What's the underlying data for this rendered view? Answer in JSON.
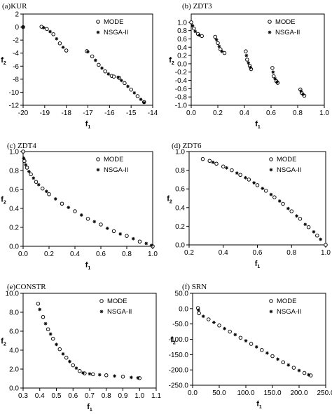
{
  "chart_data": [
    {
      "type": "scatter",
      "panel_label": "(a)KUR",
      "xlabel": "f1",
      "ylabel": "f2",
      "xlim": [
        -20,
        -14
      ],
      "ylim": [
        -12,
        2
      ],
      "xticks": [
        "-20",
        "-19",
        "-18",
        "-17",
        "-16",
        "-15",
        "-14"
      ],
      "xtick_values": [
        -20,
        -19,
        -18,
        -17,
        -16,
        -15,
        -14
      ],
      "yticks": [
        "2",
        "0",
        "-2",
        "-4",
        "-6",
        "-8",
        "-10",
        "-12"
      ],
      "ytick_values": [
        2,
        0,
        -2,
        -4,
        -6,
        -8,
        -10,
        -12
      ],
      "legend": [
        "MODE",
        "NSGA-II"
      ],
      "legend_position": "top-right",
      "series": [
        {
          "name": "MODE",
          "marker": "circle",
          "points": [
            [
              -20,
              0
            ],
            [
              -19.15,
              0.05
            ],
            [
              -18.9,
              -0.3
            ],
            [
              -18.6,
              -1.1
            ],
            [
              -18.3,
              -2.5
            ],
            [
              -18.0,
              -3.6
            ],
            [
              -17.05,
              -3.7
            ],
            [
              -16.8,
              -4.5
            ],
            [
              -16.5,
              -5.8
            ],
            [
              -16.2,
              -6.8
            ],
            [
              -15.9,
              -7.5
            ],
            [
              -15.8,
              -7.6
            ],
            [
              -15.55,
              -7.8
            ],
            [
              -15.3,
              -8.6
            ],
            [
              -15.0,
              -9.6
            ],
            [
              -14.7,
              -10.6
            ],
            [
              -14.4,
              -11.5
            ]
          ]
        },
        {
          "name": "NSGA-II",
          "marker": "asterisk",
          "points": [
            [
              -20,
              0
            ],
            [
              -19.05,
              -0.1
            ],
            [
              -18.75,
              -0.7
            ],
            [
              -18.45,
              -1.8
            ],
            [
              -18.15,
              -3.1
            ],
            [
              -17.0,
              -3.8
            ],
            [
              -16.65,
              -5.1
            ],
            [
              -16.35,
              -6.3
            ],
            [
              -16.05,
              -7.2
            ],
            [
              -15.6,
              -7.7
            ],
            [
              -15.45,
              -8.2
            ],
            [
              -15.15,
              -9.1
            ],
            [
              -14.85,
              -10.1
            ],
            [
              -14.55,
              -11.1
            ],
            [
              -14.4,
              -11.6
            ]
          ]
        }
      ]
    },
    {
      "type": "scatter",
      "panel_label": "(b) ZDT3",
      "xlabel": "f1",
      "ylabel": "f2",
      "xlim": [
        0,
        1
      ],
      "ylim": [
        -1,
        1.2
      ],
      "xticks": [
        "0.0",
        "0.2",
        "0.4",
        "0.6",
        "0.8",
        "1.0"
      ],
      "xtick_values": [
        0,
        0.2,
        0.4,
        0.6,
        0.8,
        1.0
      ],
      "yticks": [
        "1.0",
        "0.8",
        "0.6",
        "0.4",
        "0.2",
        "0.0",
        "-0.2",
        "-0.4",
        "-0.6",
        "-0.8",
        "-1.0"
      ],
      "ytick_values": [
        1.0,
        0.8,
        0.6,
        0.4,
        0.2,
        0.0,
        -0.2,
        -0.4,
        -0.6,
        -0.8,
        -1.0
      ],
      "legend": [
        "MODE",
        "NSGA-II"
      ],
      "legend_position": "top-right",
      "series": [
        {
          "name": "MODE",
          "marker": "circle",
          "points": [
            [
              0.0,
              1.0
            ],
            [
              0.02,
              0.85
            ],
            [
              0.05,
              0.72
            ],
            [
              0.08,
              0.67
            ],
            [
              0.18,
              0.65
            ],
            [
              0.2,
              0.5
            ],
            [
              0.22,
              0.35
            ],
            [
              0.25,
              0.26
            ],
            [
              0.41,
              0.3
            ],
            [
              0.42,
              0.1
            ],
            [
              0.44,
              -0.05
            ],
            [
              0.45,
              -0.13
            ],
            [
              0.61,
              -0.1
            ],
            [
              0.62,
              -0.3
            ],
            [
              0.64,
              -0.42
            ],
            [
              0.65,
              -0.46
            ],
            [
              0.82,
              -0.62
            ],
            [
              0.83,
              -0.7
            ],
            [
              0.85,
              -0.77
            ]
          ]
        },
        {
          "name": "NSGA-II",
          "marker": "asterisk",
          "points": [
            [
              0.01,
              0.92
            ],
            [
              0.03,
              0.78
            ],
            [
              0.06,
              0.69
            ],
            [
              0.19,
              0.58
            ],
            [
              0.21,
              0.42
            ],
            [
              0.23,
              0.3
            ],
            [
              0.415,
              0.2
            ],
            [
              0.43,
              0.02
            ],
            [
              0.445,
              -0.09
            ],
            [
              0.615,
              -0.2
            ],
            [
              0.63,
              -0.36
            ],
            [
              0.645,
              -0.44
            ],
            [
              0.825,
              -0.66
            ],
            [
              0.84,
              -0.74
            ]
          ]
        }
      ]
    },
    {
      "type": "scatter",
      "panel_label": "(c) ZDT4",
      "xlabel": "f1",
      "ylabel": "f2",
      "xlim": [
        0,
        1
      ],
      "ylim": [
        0,
        1
      ],
      "xticks": [
        "0.0",
        "0.2",
        "0.4",
        "0.6",
        "0.8",
        "1.0"
      ],
      "xtick_values": [
        0,
        0.2,
        0.4,
        0.6,
        0.8,
        1.0
      ],
      "yticks": [
        "1.0",
        "0.8",
        "0.6",
        "0.4",
        "0.2",
        "0.0"
      ],
      "ytick_values": [
        1.0,
        0.8,
        0.6,
        0.4,
        0.2,
        0.0
      ],
      "legend": [
        "MODE",
        "NSGA-II"
      ],
      "legend_position": "top-right",
      "series": [
        {
          "name": "MODE",
          "marker": "circle",
          "points": [
            [
              0.0,
              1.0
            ],
            [
              0.01,
              0.9
            ],
            [
              0.03,
              0.83
            ],
            [
              0.06,
              0.76
            ],
            [
              0.1,
              0.68
            ],
            [
              0.15,
              0.61
            ],
            [
              0.2,
              0.55
            ],
            [
              0.3,
              0.45
            ],
            [
              0.4,
              0.37
            ],
            [
              0.5,
              0.29
            ],
            [
              0.6,
              0.23
            ],
            [
              0.7,
              0.16
            ],
            [
              0.8,
              0.11
            ],
            [
              0.9,
              0.05
            ],
            [
              1.0,
              0.0
            ]
          ]
        },
        {
          "name": "NSGA-II",
          "marker": "asterisk",
          "points": [
            [
              0.005,
              0.93
            ],
            [
              0.02,
              0.86
            ],
            [
              0.045,
              0.79
            ],
            [
              0.08,
              0.72
            ],
            [
              0.12,
              0.65
            ],
            [
              0.18,
              0.58
            ],
            [
              0.25,
              0.5
            ],
            [
              0.35,
              0.41
            ],
            [
              0.45,
              0.33
            ],
            [
              0.55,
              0.26
            ],
            [
              0.65,
              0.19
            ],
            [
              0.75,
              0.13
            ],
            [
              0.85,
              0.08
            ],
            [
              0.95,
              0.03
            ],
            [
              0.99,
              0.01
            ]
          ]
        }
      ]
    },
    {
      "type": "scatter",
      "panel_label": "(d) ZDT6",
      "xlabel": "f1",
      "ylabel": "f2",
      "xlim": [
        0.2,
        1.0
      ],
      "ylim": [
        0,
        1
      ],
      "xticks": [
        "0.2",
        "0.4",
        "0.6",
        "0.8",
        "1.0"
      ],
      "xtick_values": [
        0.2,
        0.4,
        0.6,
        0.8,
        1.0
      ],
      "yticks": [
        "1.0",
        "0.8",
        "0.6",
        "0.4",
        "0.2",
        "0.0"
      ],
      "ytick_values": [
        1.0,
        0.8,
        0.6,
        0.4,
        0.2,
        0.0
      ],
      "legend": [
        "MODE",
        "NSGA-II"
      ],
      "legend_position": "top-right",
      "series": [
        {
          "name": "MODE",
          "marker": "circle",
          "points": [
            [
              0.28,
              0.92
            ],
            [
              0.32,
              0.9
            ],
            [
              0.36,
              0.87
            ],
            [
              0.4,
              0.84
            ],
            [
              0.45,
              0.8
            ],
            [
              0.5,
              0.75
            ],
            [
              0.55,
              0.7
            ],
            [
              0.6,
              0.64
            ],
            [
              0.65,
              0.58
            ],
            [
              0.7,
              0.51
            ],
            [
              0.75,
              0.44
            ],
            [
              0.8,
              0.36
            ],
            [
              0.85,
              0.28
            ],
            [
              0.9,
              0.19
            ],
            [
              0.95,
              0.1
            ],
            [
              1.0,
              0.0
            ]
          ]
        },
        {
          "name": "NSGA-II",
          "marker": "asterisk",
          "points": [
            [
              0.34,
              0.885
            ],
            [
              0.42,
              0.825
            ],
            [
              0.48,
              0.77
            ],
            [
              0.53,
              0.72
            ],
            [
              0.58,
              0.665
            ],
            [
              0.63,
              0.605
            ],
            [
              0.68,
              0.54
            ],
            [
              0.73,
              0.47
            ],
            [
              0.78,
              0.39
            ],
            [
              0.83,
              0.31
            ],
            [
              0.88,
              0.22
            ],
            [
              0.93,
              0.14
            ],
            [
              0.97,
              0.06
            ]
          ]
        }
      ]
    },
    {
      "type": "scatter",
      "panel_label": "(e)CONSTR",
      "xlabel": "f1",
      "ylabel": "f2",
      "xlim": [
        0.3,
        1.1
      ],
      "ylim": [
        0,
        10
      ],
      "xticks": [
        "0.3",
        "0.4",
        "0.5",
        "0.6",
        "0.7",
        "0.8",
        "0.9",
        "1.0",
        "1.1"
      ],
      "xtick_values": [
        0.3,
        0.4,
        0.5,
        0.6,
        0.7,
        0.8,
        0.9,
        1.0,
        1.1
      ],
      "yticks": [
        "10.0",
        "8.0",
        "6.0",
        "4.0",
        "2.0",
        "0.0"
      ],
      "ytick_values": [
        10,
        8,
        6,
        4,
        2,
        0
      ],
      "legend": [
        "MODE",
        "NSGA-II"
      ],
      "legend_position": "top-right",
      "series": [
        {
          "name": "MODE",
          "marker": "circle",
          "points": [
            [
              0.39,
              8.9
            ],
            [
              0.42,
              7.5
            ],
            [
              0.45,
              6.2
            ],
            [
              0.48,
              5.2
            ],
            [
              0.52,
              4.1
            ],
            [
              0.56,
              3.2
            ],
            [
              0.6,
              2.4
            ],
            [
              0.64,
              1.8
            ],
            [
              0.67,
              1.55
            ],
            [
              0.72,
              1.45
            ],
            [
              0.8,
              1.35
            ],
            [
              0.9,
              1.2
            ],
            [
              1.0,
              1.05
            ]
          ]
        },
        {
          "name": "NSGA-II",
          "marker": "asterisk",
          "points": [
            [
              0.4,
              8.3
            ],
            [
              0.435,
              6.8
            ],
            [
              0.465,
              5.7
            ],
            [
              0.5,
              4.6
            ],
            [
              0.54,
              3.6
            ],
            [
              0.58,
              2.8
            ],
            [
              0.62,
              2.1
            ],
            [
              0.66,
              1.6
            ],
            [
              0.7,
              1.5
            ],
            [
              0.76,
              1.4
            ],
            [
              0.85,
              1.27
            ],
            [
              0.95,
              1.12
            ],
            [
              0.99,
              1.07
            ]
          ]
        }
      ]
    },
    {
      "type": "scatter",
      "panel_label": "(f) SRN",
      "xlabel": "f1",
      "ylabel": "f2",
      "xlim": [
        0,
        250
      ],
      "ylim": [
        -250,
        50
      ],
      "xticks": [
        "0.0",
        "50.0",
        "100.0",
        "150.0",
        "200.0",
        "250.0"
      ],
      "xtick_values": [
        0,
        50,
        100,
        150,
        200,
        250
      ],
      "yticks": [
        "50.0",
        "0.0",
        "-50.0",
        "-100.0",
        "-150.0",
        "-200.0",
        "-250.0"
      ],
      "ytick_values": [
        50,
        0,
        -50,
        -100,
        -150,
        -200,
        -250
      ],
      "legend": [
        "MODE",
        "NSGA-II"
      ],
      "legend_position": "top-right",
      "series": [
        {
          "name": "MODE",
          "marker": "circle",
          "points": [
            [
              10,
              2
            ],
            [
              12,
              -15
            ],
            [
              30,
              -35
            ],
            [
              50,
              -55
            ],
            [
              70,
              -75
            ],
            [
              90,
              -95
            ],
            [
              110,
              -115
            ],
            [
              130,
              -135
            ],
            [
              150,
              -155
            ],
            [
              170,
              -175
            ],
            [
              190,
              -193
            ],
            [
              210,
              -210
            ],
            [
              222,
              -218
            ]
          ]
        },
        {
          "name": "NSGA-II",
          "marker": "asterisk",
          "points": [
            [
              11,
              -5
            ],
            [
              20,
              -25
            ],
            [
              40,
              -45
            ],
            [
              60,
              -65
            ],
            [
              80,
              -85
            ],
            [
              100,
              -105
            ],
            [
              120,
              -125
            ],
            [
              140,
              -145
            ],
            [
              160,
              -165
            ],
            [
              180,
              -184
            ],
            [
              200,
              -202
            ],
            [
              218,
              -216
            ]
          ]
        }
      ]
    }
  ]
}
